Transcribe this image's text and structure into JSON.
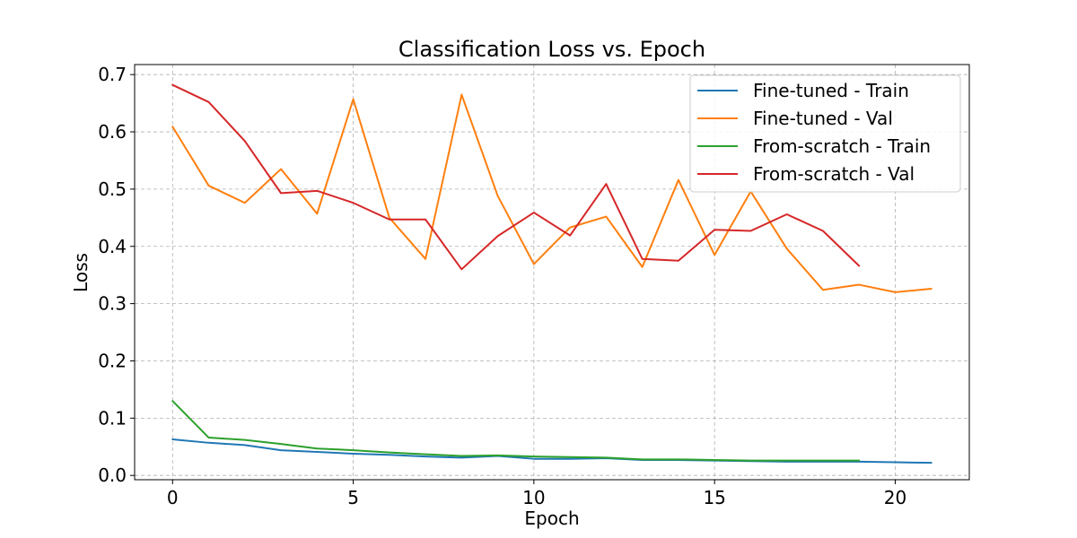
{
  "chart_data": {
    "type": "line",
    "title": "Classification Loss vs. Epoch",
    "xlabel": "Epoch",
    "ylabel": "Loss",
    "xlim": [
      -1.05,
      22.05
    ],
    "ylim": [
      -0.0075,
      0.7175
    ],
    "xticks": [
      0,
      5,
      10,
      15,
      20
    ],
    "xtick_labels": [
      "0",
      "5",
      "10",
      "15",
      "20"
    ],
    "yticks": [
      0.0,
      0.1,
      0.2,
      0.3,
      0.4,
      0.5,
      0.6,
      0.7
    ],
    "ytick_labels": [
      "0.0",
      "0.1",
      "0.2",
      "0.3",
      "0.4",
      "0.5",
      "0.6",
      "0.7"
    ],
    "grid": true,
    "legend_position": "top-right",
    "series": [
      {
        "name": "Fine-tuned - Train",
        "color": "#1f77b4",
        "x": [
          0,
          1,
          2,
          3,
          4,
          5,
          6,
          7,
          8,
          9,
          10,
          11,
          12,
          13,
          14,
          15,
          16,
          17,
          18,
          19,
          20,
          21
        ],
        "values": [
          0.063,
          0.057,
          0.053,
          0.044,
          0.041,
          0.038,
          0.036,
          0.033,
          0.031,
          0.034,
          0.029,
          0.029,
          0.03,
          0.027,
          0.027,
          0.026,
          0.025,
          0.024,
          0.024,
          0.024,
          0.023,
          0.022
        ]
      },
      {
        "name": "Fine-tuned - Val",
        "color": "#ff7f0e",
        "x": [
          0,
          1,
          2,
          3,
          4,
          5,
          6,
          7,
          8,
          9,
          10,
          11,
          12,
          13,
          14,
          15,
          16,
          17,
          18,
          19,
          20,
          21
        ],
        "values": [
          0.609,
          0.506,
          0.476,
          0.535,
          0.457,
          0.657,
          0.45,
          0.378,
          0.665,
          0.488,
          0.369,
          0.433,
          0.452,
          0.364,
          0.516,
          0.385,
          0.496,
          0.396,
          0.324,
          0.333,
          0.32,
          0.326
        ]
      },
      {
        "name": "From-scratch - Train",
        "color": "#2ca02c",
        "x": [
          0,
          1,
          2,
          3,
          4,
          5,
          6,
          7,
          8,
          9,
          10,
          11,
          12,
          13,
          14,
          15,
          16,
          17,
          18,
          19
        ],
        "values": [
          0.13,
          0.066,
          0.062,
          0.055,
          0.047,
          0.044,
          0.04,
          0.037,
          0.034,
          0.035,
          0.033,
          0.032,
          0.031,
          0.028,
          0.028,
          0.027,
          0.026,
          0.026,
          0.026,
          0.026
        ]
      },
      {
        "name": "From-scratch - Val",
        "color": "#d62728",
        "x": [
          0,
          1,
          2,
          3,
          4,
          5,
          6,
          7,
          8,
          9,
          10,
          11,
          12,
          13,
          14,
          15,
          16,
          17,
          18,
          19
        ],
        "values": [
          0.682,
          0.652,
          0.584,
          0.493,
          0.497,
          0.476,
          0.447,
          0.447,
          0.36,
          0.418,
          0.459,
          0.419,
          0.509,
          0.378,
          0.375,
          0.429,
          0.427,
          0.456,
          0.427,
          0.366
        ]
      }
    ]
  }
}
